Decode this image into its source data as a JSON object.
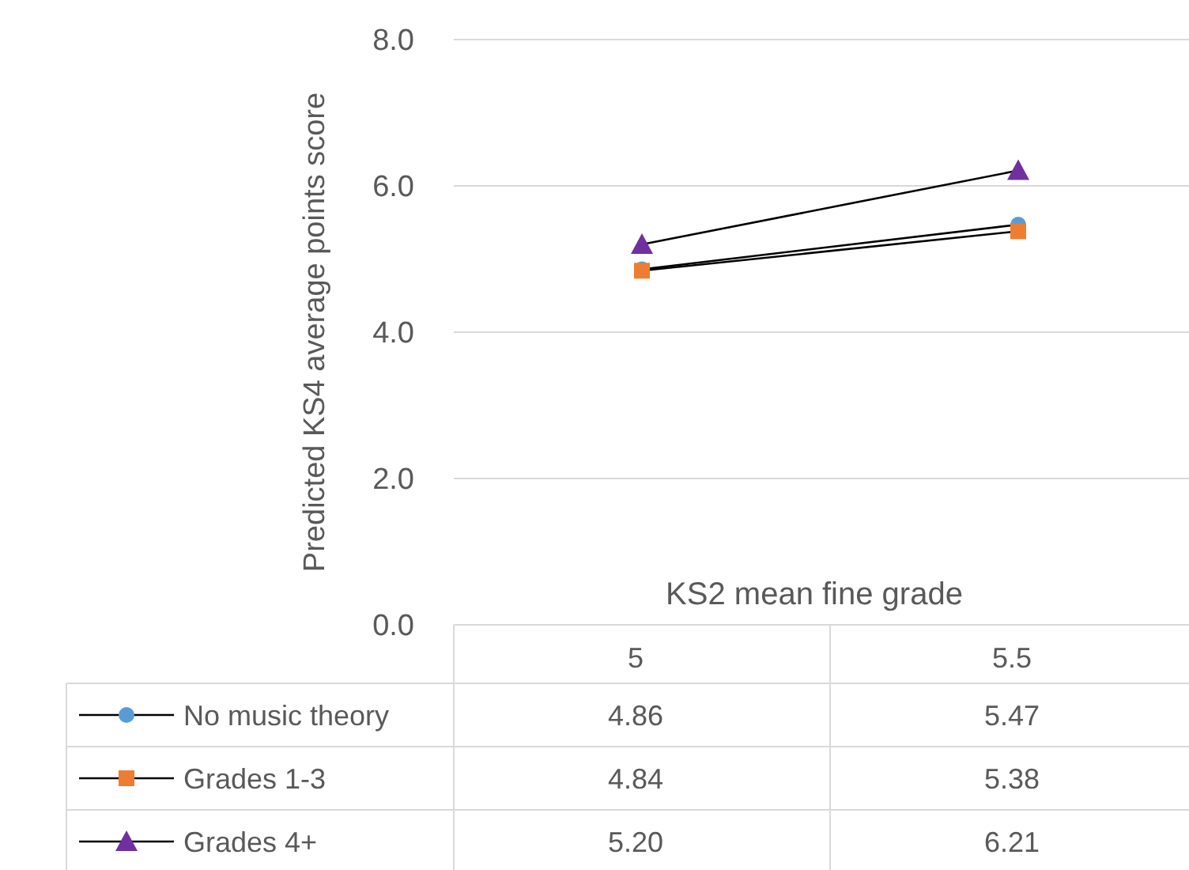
{
  "chart_data": {
    "type": "line",
    "xlabel": "KS2 mean fine grade",
    "ylabel": "Predicted KS4 average points score",
    "categories": [
      "5",
      "5.5"
    ],
    "series": [
      {
        "name": "No music theory",
        "color": "#5b9bd5",
        "marker": "circle",
        "values": [
          4.86,
          5.47
        ],
        "value_labels": [
          "4.86",
          "5.47"
        ]
      },
      {
        "name": "Grades 1-3",
        "color": "#ed7d31",
        "marker": "square",
        "values": [
          4.84,
          5.38
        ],
        "value_labels": [
          "4.84",
          "5.38"
        ]
      },
      {
        "name": "Grades 4+",
        "color": "#7030a0",
        "marker": "triangle",
        "values": [
          5.2,
          6.21
        ],
        "value_labels": [
          "5.20",
          "6.21"
        ]
      }
    ],
    "ylim": [
      0,
      8
    ],
    "yticks": [
      {
        "value": 0,
        "label": "0.0"
      },
      {
        "value": 2,
        "label": "2.0"
      },
      {
        "value": 4,
        "label": "4.0"
      },
      {
        "value": 6,
        "label": "6.0"
      },
      {
        "value": 8,
        "label": "8.0"
      }
    ],
    "grid": "y",
    "legend": "bottom"
  }
}
